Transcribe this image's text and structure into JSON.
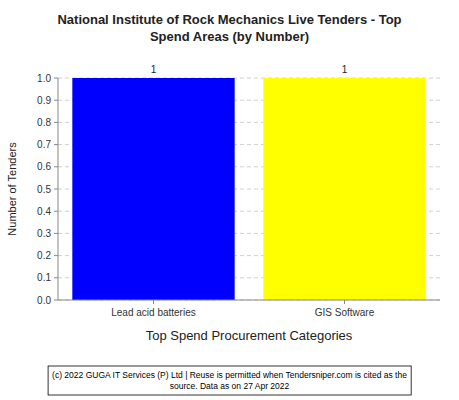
{
  "chart_data": {
    "type": "bar",
    "title": "National Institute of Rock Mechanics Live Tenders - Top\nSpend Areas (by Number)",
    "categories": [
      "Lead acid batteries",
      "GIS Software"
    ],
    "values": [
      1,
      1
    ],
    "colors": [
      "#0000FF",
      "#FFFF00"
    ],
    "xlabel": "Top Spend Procurement Categories",
    "ylabel": "Number of Tenders",
    "ylim": [
      0,
      1.0
    ],
    "yticks": [
      {
        "value": 0.0,
        "label": "0.0"
      },
      0.1,
      0.2,
      0.3,
      0.4,
      0.5,
      0.6,
      0.7,
      0.8,
      0.9,
      {
        "value": 1.0,
        "label": "1.0"
      }
    ],
    "data_labels": true,
    "grid": true,
    "annotations": [
      "(c) 2022 GUGA IT Services (P) Ltd | Reuse is permitted when Tendersniper.com is cited as the",
      "source. Data as on 27 Apr 2022"
    ]
  }
}
